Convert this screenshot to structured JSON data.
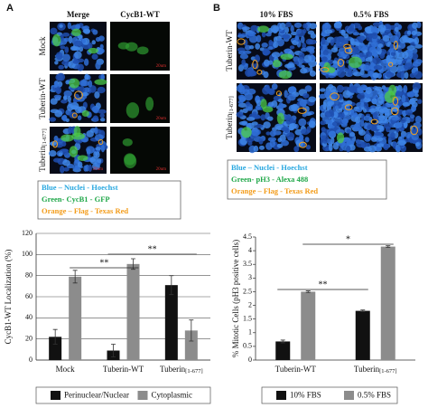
{
  "panel_a": {
    "label": "A",
    "columns": [
      "Merge",
      "CycB1-WT"
    ],
    "rows": [
      "Mock",
      "Tuberin-WT",
      "Tuberin[1-677]"
    ],
    "scale_bar": "20um",
    "legend": [
      "Blue – Nuclei - Hoechst",
      "Green- CycB1 - GFP",
      "Orange – Flag - Texas Red"
    ]
  },
  "panel_b": {
    "label": "B",
    "columns": [
      "10% FBS",
      "0.5% FBS"
    ],
    "rows": [
      "Tuberin-WT",
      "Tuberin[1-677]"
    ],
    "legend": [
      "Blue – Nuclei - Hoechst",
      "Green- pH3 - Alexa 488",
      "Orange – Flag - Texas Red"
    ]
  },
  "chart_data": [
    {
      "type": "bar",
      "ylabel": "CycB1-WT Localization (%)",
      "categories": [
        "Mock",
        "Tuberin-WT",
        "Tuberin[1-677]"
      ],
      "series": [
        {
          "name": "Perinuclear/Nuclear",
          "color": "#111111",
          "values": [
            22,
            9,
            71
          ],
          "errors": [
            7,
            6,
            9
          ]
        },
        {
          "name": "Cytoplasmic",
          "color": "#8c8c8c",
          "values": [
            79,
            91,
            28
          ],
          "errors": [
            6,
            5,
            10
          ]
        }
      ],
      "ylim": [
        0,
        120
      ],
      "yticks": [
        0,
        20,
        40,
        60,
        80,
        100,
        120
      ],
      "grid": true,
      "annotations": [
        "**",
        "**"
      ]
    },
    {
      "type": "bar",
      "ylabel": "% Mitotic Cells (pH3 positive cells)",
      "categories": [
        "Tuberin-WT",
        "Tuberin[1-677]"
      ],
      "series": [
        {
          "name": "10% FBS",
          "color": "#111111",
          "values": [
            0.68,
            1.8
          ],
          "errors": [
            0.05,
            0.03
          ]
        },
        {
          "name": "0.5% FBS",
          "color": "#8c8c8c",
          "values": [
            2.5,
            4.15
          ],
          "errors": [
            0.03,
            0.03
          ]
        }
      ],
      "ylim": [
        0,
        4.5
      ],
      "yticks": [
        0,
        0.5,
        1,
        1.5,
        2,
        2.5,
        3,
        3.5,
        4,
        4.5
      ],
      "grid": false,
      "annotations": [
        "**",
        "*"
      ]
    }
  ]
}
